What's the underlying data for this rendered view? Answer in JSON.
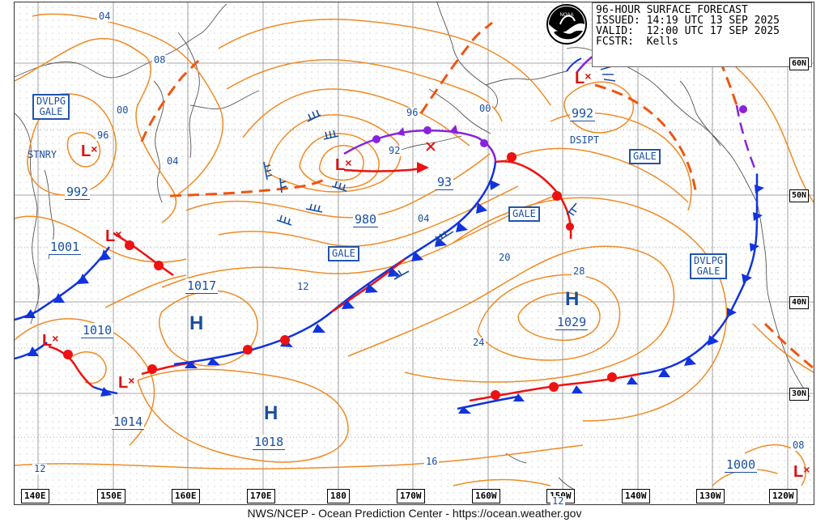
{
  "header": {
    "title": "96-HOUR SURFACE FORECAST",
    "issued": "ISSUED: 14:19 UTC 13 SEP 2025",
    "valid": "VALID:  12:00 UTC 17 SEP 2025",
    "forecaster": "FCSTR:  Kells"
  },
  "footer": "NWS/NCEP - Ocean Prediction Center - https://ocean.weather.gov",
  "lon_labels": [
    "140E",
    "150E",
    "160E",
    "170E",
    "180",
    "170W",
    "160W",
    "150W",
    "140W",
    "130W",
    "120W"
  ],
  "lat_labels": [
    "60N",
    "50N",
    "40N",
    "30N"
  ],
  "highs": [
    {
      "symbol": "H",
      "pressure": "1017"
    },
    {
      "symbol": "H",
      "pressure": "1018"
    },
    {
      "symbol": "H",
      "pressure": "1029"
    }
  ],
  "lows": [
    {
      "symbol": "L",
      "pressure": "992"
    },
    {
      "symbol": "L",
      "pressure": "1001"
    },
    {
      "symbol": "L",
      "pressure": "1010"
    },
    {
      "symbol": "L",
      "pressure": "1014"
    },
    {
      "symbol": "L",
      "pressure": "980"
    },
    {
      "symbol": "L",
      "pressure": "992"
    },
    {
      "symbol": "L",
      "pressure": "1000"
    }
  ],
  "pressure_93": "93",
  "warnings": {
    "dvlpg_gale_west": [
      "DVLPG",
      "GALE"
    ],
    "dvlpg_gale_east": [
      "DVLPG",
      "GALE"
    ],
    "gale1": "GALE",
    "gale2": "GALE",
    "gale3": "GALE"
  },
  "notes": {
    "stnry": "STNRY",
    "dsipt": "DSIPT"
  },
  "isobar_labels": {
    "l04a": "04",
    "l08a": "08",
    "l00a": "00",
    "l96a": "96",
    "l04b": "04",
    "l96b": "96",
    "l92": "92",
    "l00b": "00",
    "l04c": "04",
    "l20": "20",
    "l28": "28",
    "l24": "24",
    "l12a": "12",
    "l16": "16",
    "l12b": "12",
    "l12c": "12",
    "l08b": "08"
  },
  "colors": {
    "isobar": "#f08a24",
    "cold_front": "#1133dd",
    "warm_front": "#ee1111",
    "occluded": "#8822dd",
    "trough": "#ee5511",
    "coast": "#555555",
    "grid": "#888888",
    "label": "#1a4fa0"
  }
}
